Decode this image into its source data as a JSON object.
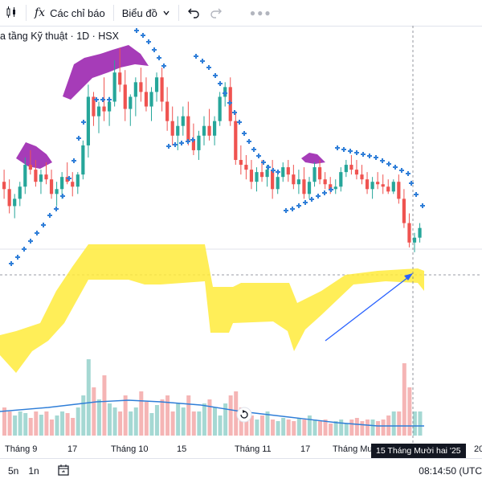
{
  "toolbar": {
    "chart_type_icon": "candlestick-icon",
    "indicators_icon": "fx-icon",
    "indicators_label": "Các chỉ báo",
    "chart_menu_label": "Biểu đồ",
    "undo_icon": "undo-icon",
    "redo_icon": "redo-icon",
    "more_icon": "more-dots-icon"
  },
  "legend": {
    "text": "a tầng Kỹ thuật · 1D · HSX"
  },
  "time_axis": {
    "labels": [
      "Tháng 9",
      "17",
      "Tháng 10",
      "15",
      "Tháng 11",
      "17",
      "Tháng Mười",
      "20"
    ],
    "crosshair_label": "15 Tháng Mười hai '25"
  },
  "bottom_bar": {
    "range_5d": "5n",
    "range_1m": "1n",
    "calendar_icon": "calendar-range-icon",
    "clock": "08:14:50 (UTC"
  },
  "colors": {
    "up": "#26a69a",
    "down": "#ef5350",
    "cloud": "#ffeb3b",
    "psar": "#2f7ed8",
    "volume_ma": "#2f7ed8",
    "overlay_purple": "#9c27b0",
    "arrow": "#2962ff"
  },
  "chart_data": {
    "type": "candlestick",
    "ticker": "HSX",
    "interval": "1D",
    "note_scale": "price axis not visible",
    "candles": [
      [
        95,
        100,
        88,
        92
      ],
      [
        92,
        96,
        82,
        85
      ],
      [
        85,
        90,
        80,
        88
      ],
      [
        88,
        95,
        85,
        93
      ],
      [
        93,
        105,
        90,
        102
      ],
      [
        102,
        108,
        98,
        100
      ],
      [
        100,
        104,
        93,
        95
      ],
      [
        95,
        100,
        90,
        98
      ],
      [
        98,
        103,
        94,
        96
      ],
      [
        96,
        100,
        88,
        90
      ],
      [
        90,
        95,
        85,
        92
      ],
      [
        92,
        99,
        88,
        97
      ],
      [
        97,
        103,
        94,
        95
      ],
      [
        95,
        99,
        89,
        93
      ],
      [
        93,
        99,
        90,
        98
      ],
      [
        98,
        112,
        96,
        110
      ],
      [
        110,
        135,
        105,
        130
      ],
      [
        130,
        132,
        118,
        122
      ],
      [
        122,
        128,
        115,
        126
      ],
      [
        126,
        138,
        120,
        124
      ],
      [
        124,
        130,
        118,
        128
      ],
      [
        128,
        145,
        126,
        140
      ],
      [
        140,
        150,
        132,
        135
      ],
      [
        135,
        141,
        120,
        125
      ],
      [
        125,
        131,
        118,
        130
      ],
      [
        130,
        138,
        122,
        136
      ],
      [
        136,
        142,
        128,
        132
      ],
      [
        132,
        138,
        124,
        126
      ],
      [
        126,
        134,
        120,
        132
      ],
      [
        132,
        140,
        128,
        138
      ],
      [
        138,
        142,
        124,
        128
      ],
      [
        128,
        134,
        116,
        120
      ],
      [
        120,
        126,
        110,
        114
      ],
      [
        114,
        122,
        108,
        118
      ],
      [
        118,
        126,
        114,
        122
      ],
      [
        122,
        128,
        110,
        112
      ],
      [
        112,
        119,
        106,
        108
      ],
      [
        108,
        116,
        104,
        114
      ],
      [
        114,
        122,
        110,
        118
      ],
      [
        118,
        125,
        112,
        114
      ],
      [
        114,
        122,
        110,
        120
      ],
      [
        120,
        132,
        118,
        130
      ],
      [
        130,
        136,
        126,
        134
      ],
      [
        134,
        138,
        118,
        120
      ],
      [
        120,
        124,
        102,
        104
      ],
      [
        104,
        110,
        98,
        102
      ],
      [
        102,
        106,
        96,
        100
      ],
      [
        100,
        104,
        92,
        95
      ],
      [
        95,
        101,
        91,
        99
      ],
      [
        99,
        104,
        95,
        97
      ],
      [
        97,
        102,
        93,
        100
      ],
      [
        100,
        104,
        88,
        92
      ],
      [
        92,
        99,
        90,
        97
      ],
      [
        97,
        103,
        95,
        101
      ],
      [
        101,
        104,
        95,
        98
      ],
      [
        98,
        102,
        92,
        94
      ],
      [
        94,
        100,
        90,
        96
      ],
      [
        96,
        101,
        88,
        90
      ],
      [
        90,
        97,
        88,
        95
      ],
      [
        95,
        103,
        93,
        101
      ],
      [
        101,
        104,
        94,
        96
      ],
      [
        96,
        99,
        92,
        94
      ],
      [
        94,
        97,
        90,
        92
      ],
      [
        92,
        96,
        90,
        93
      ],
      [
        93,
        101,
        91,
        99
      ],
      [
        99,
        104,
        97,
        102
      ],
      [
        102,
        106,
        98,
        100
      ],
      [
        100,
        104,
        96,
        98
      ],
      [
        98,
        102,
        94,
        96
      ],
      [
        96,
        99,
        90,
        92
      ],
      [
        92,
        97,
        88,
        95
      ],
      [
        95,
        99,
        92,
        94
      ],
      [
        94,
        98,
        90,
        93
      ],
      [
        93,
        96,
        90,
        91
      ],
      [
        91,
        96,
        90,
        95
      ],
      [
        95,
        98,
        86,
        88
      ],
      [
        88,
        92,
        76,
        78
      ],
      [
        78,
        82,
        68,
        70
      ],
      [
        70,
        74,
        66,
        72
      ],
      [
        72,
        78,
        70,
        76
      ]
    ],
    "volume_relative": [
      0.35,
      0.3,
      0.25,
      0.3,
      0.28,
      0.22,
      0.3,
      0.26,
      0.3,
      0.2,
      0.25,
      0.3,
      0.28,
      0.22,
      0.35,
      0.5,
      0.95,
      0.6,
      0.45,
      0.75,
      0.4,
      0.35,
      0.3,
      0.5,
      0.3,
      0.35,
      0.55,
      0.42,
      0.28,
      0.38,
      0.45,
      0.5,
      0.3,
      0.4,
      0.35,
      0.5,
      0.3,
      0.3,
      0.4,
      0.45,
      0.35,
      0.25,
      0.4,
      0.5,
      0.55,
      0.35,
      0.3,
      0.25,
      0.2,
      0.25,
      0.3,
      0.2,
      0.18,
      0.22,
      0.2,
      0.18,
      0.22,
      0.2,
      0.25,
      0.2,
      0.18,
      0.2,
      0.15,
      0.18,
      0.2,
      0.15,
      0.2,
      0.22,
      0.18,
      0.2,
      0.2,
      0.18,
      0.2,
      0.25,
      0.3,
      0.3,
      0.9,
      0.6,
      0.3,
      0.3
    ]
  }
}
